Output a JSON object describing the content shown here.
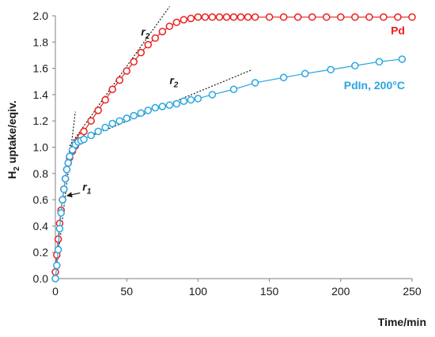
{
  "chart_data": {
    "type": "scatter",
    "title": "",
    "xlabel": "Time/min",
    "ylabel": {
      "prefix": "H",
      "sub": "2",
      "suffix": " uptake/eqiv."
    },
    "xlim": [
      0,
      250
    ],
    "ylim": [
      0,
      2
    ],
    "xticks": [
      0,
      50,
      100,
      150,
      200,
      250
    ],
    "yticks": [
      0.0,
      0.2,
      0.4,
      0.6,
      0.8,
      1.0,
      1.2,
      1.4,
      1.6,
      1.8,
      2.0
    ],
    "ytick_labels": [
      "0.0",
      "0.2",
      "0.4",
      "0.6",
      "0.8",
      "1.0",
      "1.2",
      "1.4",
      "1.6",
      "1.8",
      "2.0"
    ],
    "xtick_labels": [
      "0",
      "50",
      "100",
      "150",
      "200",
      "250"
    ],
    "grid": false,
    "series": [
      {
        "name": "Pd",
        "color": "#e8201e",
        "marker": "open-circle",
        "x": [
          0,
          1,
          2,
          3,
          4,
          5,
          6,
          7,
          8,
          9,
          10,
          12,
          14,
          16,
          18,
          20,
          25,
          30,
          35,
          40,
          45,
          50,
          55,
          60,
          65,
          70,
          75,
          80,
          85,
          90,
          95,
          100,
          105,
          110,
          115,
          120,
          125,
          130,
          135,
          140,
          150,
          160,
          170,
          180,
          190,
          200,
          210,
          220,
          230,
          240,
          250
        ],
        "y": [
          0.05,
          0.18,
          0.3,
          0.42,
          0.52,
          0.6,
          0.68,
          0.76,
          0.83,
          0.88,
          0.92,
          0.97,
          1.01,
          1.05,
          1.08,
          1.12,
          1.2,
          1.28,
          1.36,
          1.44,
          1.51,
          1.58,
          1.65,
          1.72,
          1.78,
          1.83,
          1.88,
          1.92,
          1.95,
          1.97,
          1.98,
          1.99,
          1.99,
          1.99,
          1.99,
          1.99,
          1.99,
          1.99,
          1.99,
          1.99,
          1.99,
          1.99,
          1.99,
          1.99,
          1.99,
          1.99,
          1.99,
          1.99,
          1.99,
          1.99,
          1.99
        ]
      },
      {
        "name": "PdIn, 200°C",
        "color": "#2aa6e0",
        "marker": "open-circle",
        "x": [
          0,
          1,
          2,
          3,
          4,
          5,
          6,
          7,
          8,
          9,
          10,
          12,
          14,
          16,
          18,
          20,
          25,
          30,
          35,
          40,
          45,
          50,
          55,
          60,
          65,
          70,
          75,
          80,
          85,
          90,
          95,
          100,
          110,
          125,
          140,
          160,
          175,
          193,
          210,
          227,
          243
        ],
        "y": [
          0.0,
          0.1,
          0.22,
          0.38,
          0.5,
          0.6,
          0.68,
          0.76,
          0.83,
          0.88,
          0.93,
          0.98,
          1.02,
          1.04,
          1.05,
          1.06,
          1.09,
          1.12,
          1.15,
          1.18,
          1.2,
          1.22,
          1.24,
          1.26,
          1.28,
          1.3,
          1.31,
          1.32,
          1.33,
          1.35,
          1.36,
          1.37,
          1.4,
          1.44,
          1.49,
          1.53,
          1.56,
          1.59,
          1.62,
          1.65,
          1.67
        ]
      }
    ],
    "fit_lines": [
      {
        "label": "r1",
        "x": [
          0,
          14
        ],
        "y": [
          0.0,
          1.27
        ]
      },
      {
        "label": "r2",
        "x": [
          10,
          80
        ],
        "y": [
          1.01,
          2.07
        ]
      },
      {
        "label": "r2",
        "x": [
          17,
          138
        ],
        "y": [
          1.05,
          1.59
        ]
      }
    ],
    "annotations": [
      {
        "base": "r",
        "sub": "2",
        "x": 60,
        "y": 1.85,
        "near": "Pd"
      },
      {
        "base": "r",
        "sub": "2",
        "x": 80,
        "y": 1.48,
        "near": "PdIn, 200°C"
      },
      {
        "base": "r",
        "sub": "1",
        "x": 19,
        "y": 0.67,
        "arrow_to": [
          7,
          0.63
        ]
      }
    ],
    "series_labels": [
      {
        "text": "Pd",
        "x": 245,
        "y": 1.86
      },
      {
        "text": "PdIn, 200°C",
        "x": 245,
        "y": 1.44
      }
    ]
  }
}
